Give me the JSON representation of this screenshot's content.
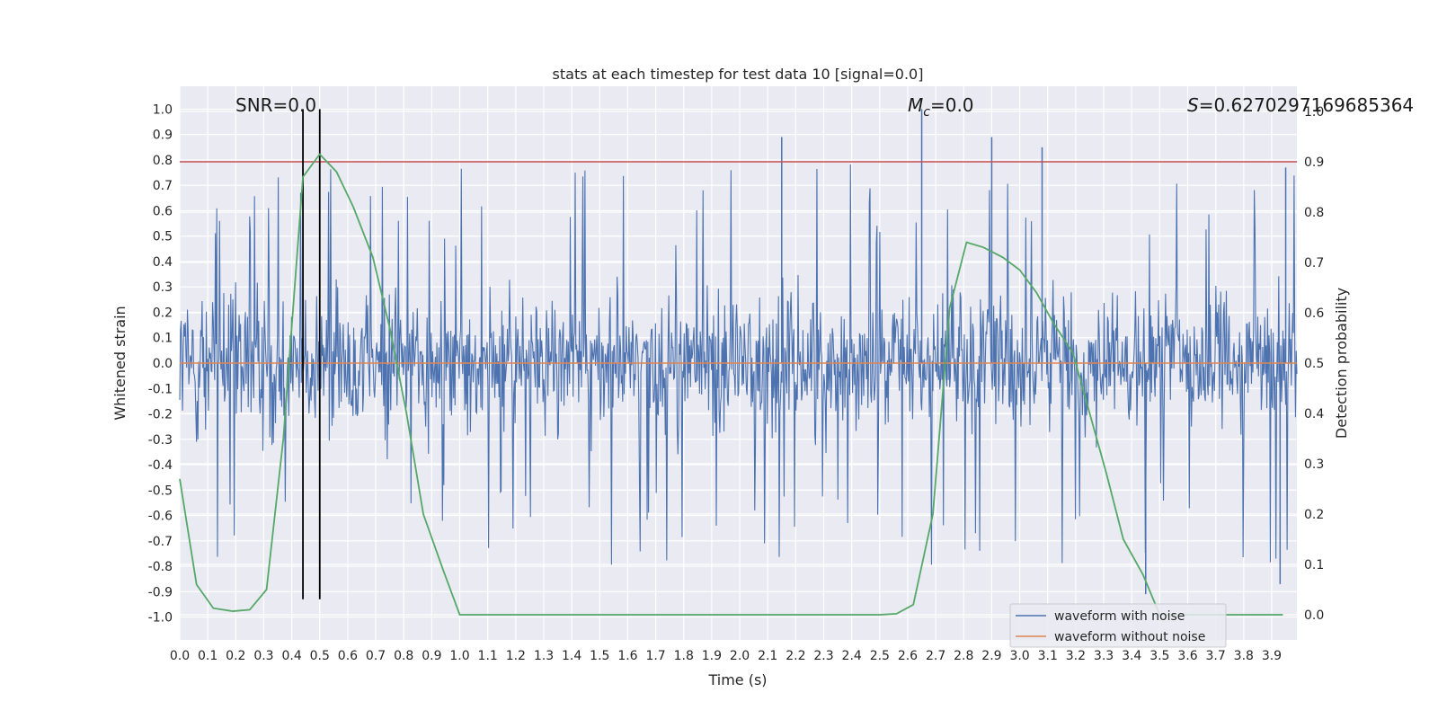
{
  "chart_data": {
    "type": "line",
    "title": "stats at each timestep for test data 10 [signal=0.0]",
    "xlabel": "Time (s)",
    "ylabel": "Whitened strain",
    "y2label": "Detection probability",
    "xlim": [
      0.0,
      3.99
    ],
    "ylim": [
      -1.09,
      1.09
    ],
    "y2lim": [
      -0.05,
      1.05
    ],
    "xticks": [
      "0.0",
      "0.1",
      "0.2",
      "0.3",
      "0.4",
      "0.5",
      "0.6",
      "0.7",
      "0.8",
      "0.9",
      "1.0",
      "1.1",
      "1.2",
      "1.3",
      "1.4",
      "1.5",
      "1.6",
      "1.7",
      "1.8",
      "1.9",
      "2.0",
      "2.1",
      "2.2",
      "2.3",
      "2.4",
      "2.5",
      "2.6",
      "2.7",
      "2.8",
      "2.9",
      "3.0",
      "3.1",
      "3.2",
      "3.3",
      "3.4",
      "3.5",
      "3.6",
      "3.7",
      "3.8",
      "3.9"
    ],
    "yticks": [
      "1.0",
      "0.9",
      "0.8",
      "0.7",
      "0.6",
      "0.5",
      "0.4",
      "0.3",
      "0.2",
      "0.1",
      "0.0",
      "-0.1",
      "-0.2",
      "-0.3",
      "-0.4",
      "-0.5",
      "-0.6",
      "-0.7",
      "-0.8",
      "-0.9",
      "-1.0"
    ],
    "y2ticks": [
      "1.0",
      "0.9",
      "0.8",
      "0.7",
      "0.6",
      "0.5",
      "0.4",
      "0.3",
      "0.2",
      "0.1",
      "0.0"
    ],
    "annotations": {
      "snr": "SNR=0.0",
      "mc_symbol": "M",
      "mc_sub": "c",
      "mc_value": "=0.0",
      "s_symbol": "S",
      "s_value": "=0.6270297169685364"
    },
    "series": [
      {
        "name": "waveform with noise",
        "axis": "left",
        "color": "#4c72b0",
        "kind": "noise",
        "amplitude_typical": 0.45,
        "amplitude_max": 1.0
      },
      {
        "name": "waveform without noise",
        "axis": "left",
        "color": "#dd8452",
        "x": [
          0.0,
          3.99
        ],
        "y": [
          0.0,
          0.0
        ]
      },
      {
        "name": "detection probability",
        "axis": "right",
        "color": "#55a868",
        "x": [
          0.0,
          0.06,
          0.12,
          0.19,
          0.25,
          0.31,
          0.37,
          0.44,
          0.5,
          0.56,
          0.62,
          0.69,
          0.75,
          0.81,
          0.87,
          0.94,
          1.0,
          2.5,
          2.56,
          2.62,
          2.69,
          2.75,
          2.81,
          2.87,
          2.94,
          3.0,
          3.06,
          3.12,
          3.19,
          3.25,
          3.31,
          3.37,
          3.44,
          3.5,
          3.94
        ],
        "y": [
          0.27,
          0.06,
          0.013,
          0.007,
          0.01,
          0.05,
          0.35,
          0.87,
          0.915,
          0.88,
          0.81,
          0.71,
          0.57,
          0.4,
          0.2,
          0.09,
          0.0,
          0.0,
          0.002,
          0.02,
          0.2,
          0.61,
          0.74,
          0.73,
          0.71,
          0.685,
          0.64,
          0.58,
          0.52,
          0.4,
          0.28,
          0.15,
          0.08,
          0.0,
          0.0
        ]
      }
    ],
    "threshold_line": {
      "axis": "right",
      "value": 0.9,
      "color": "#c44e52"
    },
    "vertical_markers": {
      "x": [
        0.44,
        0.5
      ],
      "color": "#000000"
    },
    "legend": {
      "location": "bottom-right",
      "entries": [
        {
          "label": "waveform with noise",
          "color": "#4c72b0"
        },
        {
          "label": "waveform without noise",
          "color": "#dd8452"
        }
      ]
    },
    "grid": true
  }
}
